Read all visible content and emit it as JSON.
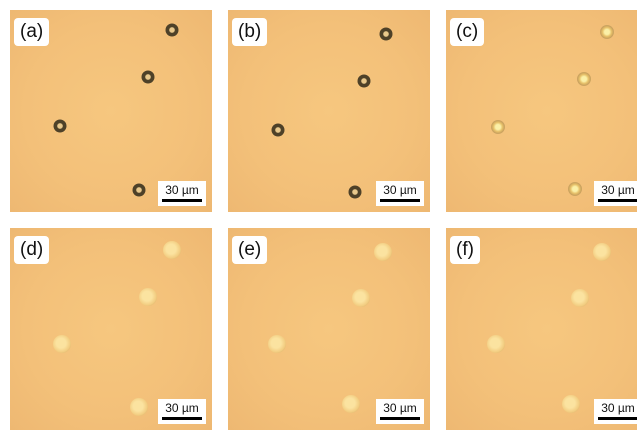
{
  "panels": [
    {
      "label": "(a)",
      "scale_bar": "30 µm"
    },
    {
      "label": "(b)",
      "scale_bar": "30 µm"
    },
    {
      "label": "(c)",
      "scale_bar": "30 µm"
    },
    {
      "label": "(d)",
      "scale_bar": "30 µm"
    },
    {
      "label": "(e)",
      "scale_bar": "30 µm"
    },
    {
      "label": "(f)",
      "scale_bar": "30 µm"
    }
  ]
}
